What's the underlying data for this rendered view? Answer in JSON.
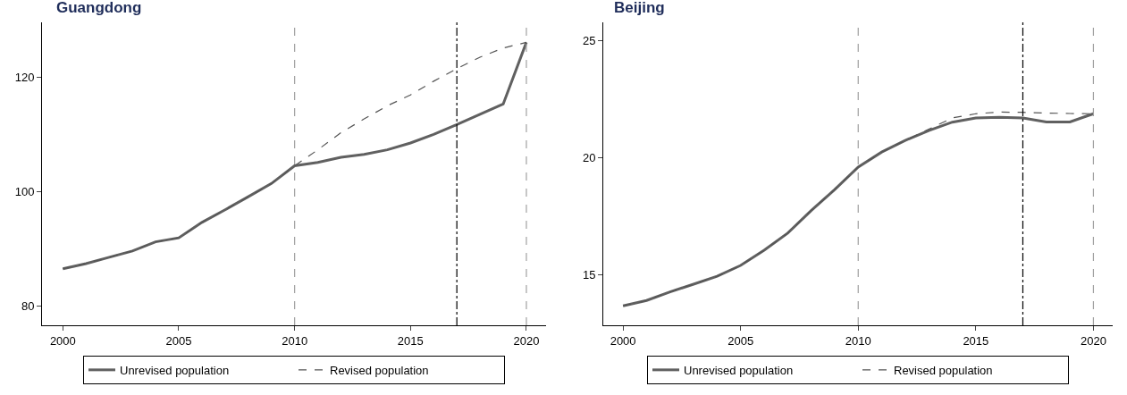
{
  "chart_data": [
    {
      "type": "line",
      "title": "Guangdong",
      "x": [
        2000,
        2001,
        2002,
        2003,
        2004,
        2005,
        2006,
        2007,
        2008,
        2009,
        2010,
        2011,
        2012,
        2013,
        2014,
        2015,
        2016,
        2017,
        2018,
        2019,
        2020
      ],
      "series": [
        {
          "name": "Unrevised population",
          "color": "#606060",
          "line_style": "solid",
          "values": [
            86.5,
            87.4,
            88.5,
            89.6,
            91.2,
            91.9,
            94.6,
            96.8,
            99.1,
            101.4,
            104.5,
            105.1,
            106.0,
            106.5,
            107.3,
            108.5,
            110.0,
            111.7,
            113.5,
            115.3,
            126.1
          ]
        },
        {
          "name": "Revised population",
          "color": "#555555",
          "line_style": "dashed",
          "values": [
            86.5,
            87.4,
            88.5,
            89.6,
            91.2,
            91.9,
            94.6,
            96.8,
            99.1,
            101.4,
            104.5,
            107.3,
            110.3,
            112.7,
            115.0,
            116.9,
            119.3,
            121.5,
            123.5,
            125.1,
            126.1
          ]
        }
      ],
      "xlim": [
        1999.1,
        2020.85
      ],
      "xticks": [
        2000,
        2005,
        2010,
        2015,
        2020
      ],
      "ylim": [
        76.6,
        129.6
      ],
      "yticks": [
        80,
        100,
        120
      ],
      "ref_lines": [
        {
          "axis": "x",
          "value": 2010,
          "color": "#a0a0a0",
          "line_style": "dashed"
        },
        {
          "axis": "x",
          "value": 2017,
          "color": "#000000",
          "line_style": "dotted"
        },
        {
          "axis": "x",
          "value": 2020,
          "color": "#a0a0a0",
          "line_style": "dashed"
        }
      ],
      "grid": false,
      "legend": "bottom",
      "marker": "none"
    },
    {
      "type": "line",
      "title": "Beijing",
      "x": [
        2000,
        2001,
        2002,
        2003,
        2004,
        2005,
        2006,
        2007,
        2008,
        2009,
        2010,
        2011,
        2012,
        2013,
        2014,
        2015,
        2016,
        2017,
        2018,
        2019,
        2020
      ],
      "series": [
        {
          "name": "Unrevised population",
          "color": "#606060",
          "line_style": "solid",
          "values": [
            13.67,
            13.9,
            14.27,
            14.6,
            14.94,
            15.4,
            16.05,
            16.78,
            17.75,
            18.65,
            19.61,
            20.25,
            20.75,
            21.17,
            21.53,
            21.71,
            21.74,
            21.71,
            21.54,
            21.54,
            21.89
          ]
        },
        {
          "name": "Revised population",
          "color": "#555555",
          "line_style": "dashed",
          "values": [
            13.67,
            13.9,
            14.27,
            14.6,
            14.94,
            15.4,
            16.05,
            16.78,
            17.75,
            18.65,
            19.61,
            20.25,
            20.75,
            21.23,
            21.71,
            21.89,
            21.96,
            21.95,
            21.92,
            21.9,
            21.89
          ]
        }
      ],
      "xlim": [
        1999.16,
        2020.82
      ],
      "xticks": [
        2000,
        2005,
        2010,
        2015,
        2020
      ],
      "ylim": [
        12.84,
        25.8
      ],
      "yticks": [
        15,
        20,
        25
      ],
      "ref_lines": [
        {
          "axis": "x",
          "value": 2010,
          "color": "#a0a0a0",
          "line_style": "dashed"
        },
        {
          "axis": "x",
          "value": 2017,
          "color": "#000000",
          "line_style": "dotted"
        },
        {
          "axis": "x",
          "value": 2020,
          "color": "#a0a0a0",
          "line_style": "dashed"
        }
      ],
      "grid": false,
      "legend": "bottom",
      "marker": "none"
    }
  ]
}
